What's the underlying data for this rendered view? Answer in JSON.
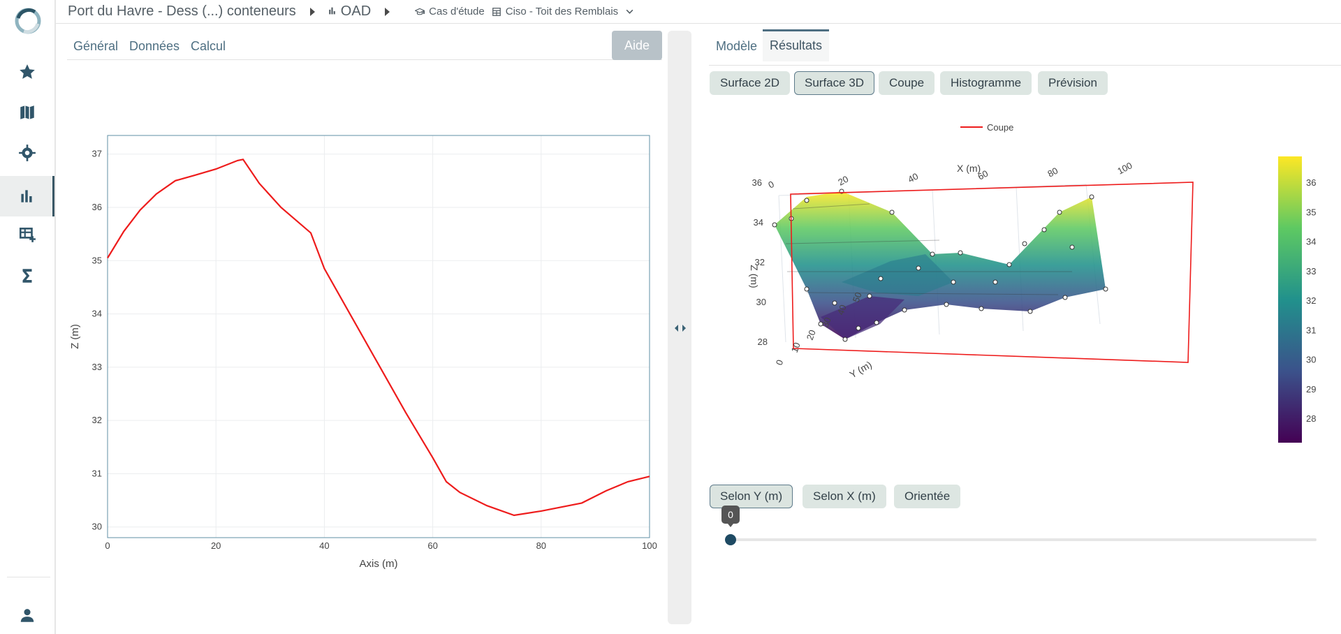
{
  "breadcrumb": {
    "project": "Port du Havre - Dess (...) conteneurs",
    "module": "OAD",
    "case_label": "Cas d'étude",
    "case_value": "Ciso - Toit des Remblais"
  },
  "left_tabs": [
    "Général",
    "Données",
    "Calcul"
  ],
  "help_label": "Aide",
  "right_tabs": {
    "model": "Modèle",
    "results": "Résultats"
  },
  "view_buttons": [
    "Surface 2D",
    "Surface 3D",
    "Coupe",
    "Histogramme",
    "Prévision"
  ],
  "selected_view": "Surface 3D",
  "axis_buttons": [
    "Selon Y (m)",
    "Selon X (m)",
    "Orientée"
  ],
  "selected_axis": "Selon Y (m)",
  "slider": {
    "value": 0,
    "label": "0"
  },
  "chart_data": [
    {
      "type": "line",
      "xlabel": "Axis (m)",
      "ylabel": "Z (m)",
      "xlim": [
        0,
        100
      ],
      "ylim": [
        29.8,
        37.35
      ],
      "x_ticks": [
        "0",
        "20",
        "40",
        "60",
        "80",
        "100"
      ],
      "y_ticks": [
        "30",
        "31",
        "32",
        "33",
        "34",
        "35",
        "36",
        "37"
      ],
      "grid": true,
      "series": [
        {
          "color": "#ee1c1c",
          "x": [
            0,
            3,
            6,
            9,
            12.5,
            16,
            20,
            24,
            25,
            28,
            32,
            37.5,
            40,
            45,
            50,
            55,
            60,
            62.5,
            65,
            70,
            75,
            80,
            87.5,
            92,
            96,
            100
          ],
          "y": [
            35.05,
            35.55,
            35.95,
            36.25,
            36.5,
            36.6,
            36.72,
            36.88,
            36.9,
            36.45,
            36.0,
            35.52,
            34.85,
            33.95,
            33.05,
            32.15,
            31.3,
            30.85,
            30.65,
            30.4,
            30.22,
            30.3,
            30.45,
            30.68,
            30.85,
            30.95
          ]
        }
      ]
    },
    {
      "type": "surface",
      "legend": [
        "Coupe"
      ],
      "legend_placement": "top-center",
      "xlabel": "X (m)",
      "ylabel": "Y (m)",
      "zlabel": "Z (m)",
      "x_ticks": [
        "0",
        "20",
        "40",
        "60",
        "80",
        "100"
      ],
      "y_ticks": [
        "0",
        "10",
        "20",
        "30",
        "40",
        "50"
      ],
      "z_ticks": [
        "28",
        "30",
        "32",
        "34",
        "36"
      ],
      "colorscale": [
        "#440154",
        "#3b528b",
        "#21918c",
        "#5ec962",
        "#fde725"
      ],
      "colorbar_range": [
        27.2,
        36.9
      ],
      "colorbar_ticks": [
        "28",
        "29",
        "30",
        "31",
        "32",
        "33",
        "34",
        "35",
        "36"
      ],
      "cut_plane_color": "#ee1c1c"
    }
  ]
}
